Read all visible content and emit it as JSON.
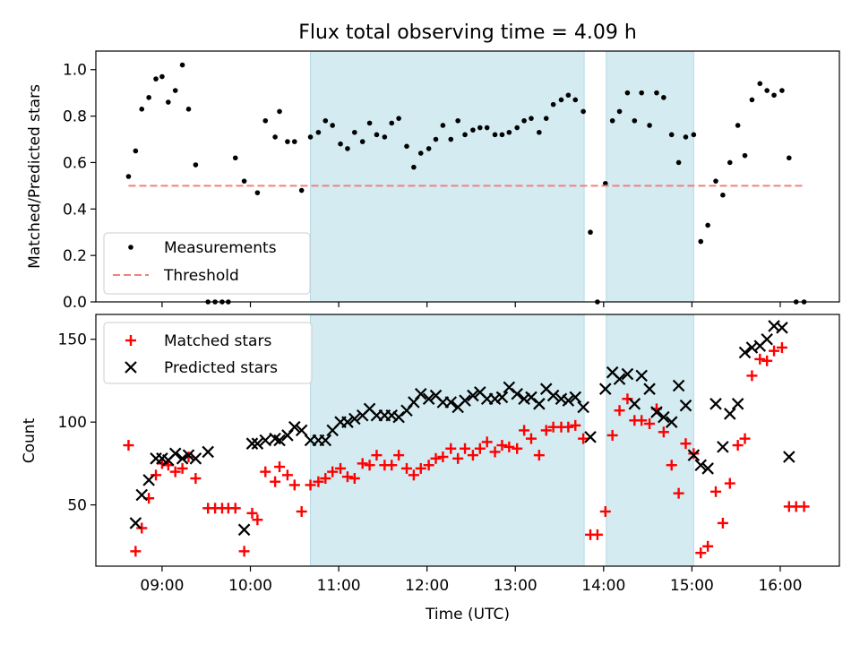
{
  "chart_data": [
    {
      "type": "scatter",
      "title": "Flux total observing time = 4.09 h",
      "ylabel": "Matched/Predicted stars",
      "xlabel": "",
      "x_unit": "hours UTC",
      "xlim": [
        8.25,
        16.67
      ],
      "ylim": [
        0,
        1.08
      ],
      "yticks": [
        0.0,
        0.2,
        0.4,
        0.6,
        0.8,
        1.0
      ],
      "ytick_labels": [
        "0.0",
        "0.2",
        "0.4",
        "0.6",
        "0.8",
        "1.0"
      ],
      "shaded_regions": [
        [
          10.68,
          13.78
        ],
        [
          14.03,
          15.02
        ]
      ],
      "shade_color": "#d3ebf1",
      "legend_position": "lower-left",
      "series": [
        {
          "name": "Measurements",
          "marker": "dot",
          "color": "#000000",
          "x": [
            8.62,
            8.7,
            8.77,
            8.85,
            8.93,
            9.0,
            9.07,
            9.15,
            9.23,
            9.3,
            9.38,
            9.52,
            9.6,
            9.68,
            9.75,
            9.83,
            9.93,
            10.08,
            10.17,
            10.28,
            10.33,
            10.42,
            10.5,
            10.58,
            10.68,
            10.77,
            10.85,
            10.93,
            11.02,
            11.1,
            11.18,
            11.27,
            11.35,
            11.43,
            11.52,
            11.6,
            11.68,
            11.77,
            11.85,
            11.93,
            12.02,
            12.1,
            12.18,
            12.27,
            12.35,
            12.43,
            12.52,
            12.6,
            12.68,
            12.77,
            12.85,
            12.93,
            13.02,
            13.1,
            13.18,
            13.27,
            13.35,
            13.43,
            13.52,
            13.6,
            13.68,
            13.77,
            13.85,
            13.93,
            14.02,
            14.1,
            14.18,
            14.27,
            14.35,
            14.43,
            14.52,
            14.6,
            14.68,
            14.77,
            14.85,
            14.93,
            15.02,
            15.1,
            15.18,
            15.27,
            15.35,
            15.43,
            15.52,
            15.6,
            15.68,
            15.77,
            15.85,
            15.93,
            16.02,
            16.1,
            16.18,
            16.27
          ],
          "y": [
            0.54,
            0.65,
            0.83,
            0.88,
            0.96,
            0.97,
            0.86,
            0.91,
            1.02,
            0.83,
            0.59,
            0.0,
            0.0,
            0.0,
            0.0,
            0.62,
            0.52,
            0.47,
            0.78,
            0.71,
            0.82,
            0.69,
            0.69,
            0.48,
            0.71,
            0.73,
            0.78,
            0.76,
            0.68,
            0.66,
            0.73,
            0.69,
            0.77,
            0.72,
            0.71,
            0.77,
            0.79,
            0.67,
            0.58,
            0.64,
            0.66,
            0.7,
            0.76,
            0.7,
            0.78,
            0.72,
            0.74,
            0.75,
            0.75,
            0.72,
            0.72,
            0.73,
            0.75,
            0.78,
            0.79,
            0.73,
            0.79,
            0.85,
            0.87,
            0.89,
            0.87,
            0.82,
            0.3,
            0.0,
            0.51,
            0.78,
            0.82,
            0.9,
            0.78,
            0.9,
            0.76,
            0.9,
            0.88,
            0.72,
            0.6,
            0.71,
            0.72,
            0.26,
            0.33,
            0.52,
            0.46,
            0.6,
            0.76,
            0.63,
            0.87,
            0.94,
            0.91,
            0.89,
            0.91,
            0.62,
            0.0,
            0.0
          ]
        },
        {
          "name": "Threshold",
          "marker": "dashed-line",
          "color": "#f08080",
          "x": [
            8.62,
            16.27
          ],
          "y": [
            0.5,
            0.5
          ]
        }
      ]
    },
    {
      "type": "scatter",
      "title": "",
      "ylabel": "Count",
      "xlabel": "Time (UTC)",
      "x_unit": "hours UTC",
      "xlim": [
        8.25,
        16.67
      ],
      "ylim": [
        13,
        165
      ],
      "yticks": [
        50,
        100,
        150
      ],
      "ytick_labels": [
        "50",
        "100",
        "150"
      ],
      "xticks": [
        9,
        10,
        11,
        12,
        13,
        14,
        15,
        16
      ],
      "xtick_labels": [
        "09:00",
        "10:00",
        "11:00",
        "12:00",
        "13:00",
        "14:00",
        "15:00",
        "16:00"
      ],
      "shaded_regions": [
        [
          10.68,
          13.78
        ],
        [
          14.03,
          15.02
        ]
      ],
      "shade_color": "#d3ebf1",
      "legend_position": "upper-left",
      "series": [
        {
          "name": "Matched stars",
          "marker": "plus",
          "color": "#ff0000",
          "x": [
            8.62,
            8.7,
            8.77,
            8.85,
            8.93,
            9.0,
            9.07,
            9.15,
            9.23,
            9.3,
            9.38,
            9.52,
            9.6,
            9.68,
            9.75,
            9.83,
            9.93,
            10.02,
            10.08,
            10.17,
            10.28,
            10.33,
            10.42,
            10.5,
            10.58,
            10.68,
            10.77,
            10.85,
            10.93,
            11.02,
            11.1,
            11.18,
            11.27,
            11.35,
            11.43,
            11.52,
            11.6,
            11.68,
            11.77,
            11.85,
            11.93,
            12.02,
            12.1,
            12.18,
            12.27,
            12.35,
            12.43,
            12.52,
            12.6,
            12.68,
            12.77,
            12.85,
            12.93,
            13.02,
            13.1,
            13.18,
            13.27,
            13.35,
            13.43,
            13.52,
            13.6,
            13.68,
            13.77,
            13.85,
            13.93,
            14.02,
            14.1,
            14.18,
            14.27,
            14.35,
            14.43,
            14.52,
            14.6,
            14.68,
            14.77,
            14.85,
            14.93,
            15.02,
            15.1,
            15.18,
            15.27,
            15.35,
            15.43,
            15.52,
            15.6,
            15.68,
            15.77,
            15.85,
            15.93,
            16.02,
            16.1,
            16.18,
            16.27
          ],
          "y": [
            86,
            22,
            36,
            54,
            68,
            75,
            74,
            70,
            72,
            79,
            66,
            48,
            48,
            48,
            48,
            48,
            22,
            45,
            41,
            70,
            64,
            73,
            68,
            62,
            46,
            62,
            64,
            66,
            70,
            72,
            67,
            66,
            75,
            74,
            80,
            74,
            74,
            80,
            72,
            68,
            72,
            74,
            78,
            79,
            84,
            78,
            84,
            80,
            84,
            88,
            82,
            86,
            85,
            84,
            95,
            90,
            80,
            95,
            97,
            97,
            97,
            98,
            90,
            32,
            32,
            46,
            92,
            107,
            114,
            101,
            101,
            99,
            108,
            94,
            74,
            57,
            87,
            81,
            21,
            25,
            58,
            39,
            63,
            86,
            90,
            128,
            138,
            137,
            143,
            145,
            49,
            49,
            49
          ]
        },
        {
          "name": "Predicted stars",
          "marker": "cross",
          "color": "#000000",
          "x": [
            8.7,
            8.77,
            8.85,
            8.93,
            9.0,
            9.07,
            9.15,
            9.23,
            9.3,
            9.38,
            9.52,
            9.93,
            10.02,
            10.08,
            10.17,
            10.28,
            10.33,
            10.42,
            10.5,
            10.58,
            10.68,
            10.77,
            10.85,
            10.93,
            11.02,
            11.1,
            11.18,
            11.27,
            11.35,
            11.43,
            11.52,
            11.6,
            11.68,
            11.77,
            11.85,
            11.93,
            12.02,
            12.1,
            12.18,
            12.27,
            12.35,
            12.43,
            12.52,
            12.6,
            12.68,
            12.77,
            12.85,
            12.93,
            13.02,
            13.1,
            13.18,
            13.27,
            13.35,
            13.43,
            13.52,
            13.6,
            13.68,
            13.77,
            13.85,
            14.02,
            14.1,
            14.18,
            14.27,
            14.35,
            14.43,
            14.52,
            14.6,
            14.68,
            14.77,
            14.85,
            14.93,
            15.02,
            15.1,
            15.18,
            15.27,
            15.35,
            15.43,
            15.52,
            15.6,
            15.68,
            15.77,
            15.85,
            15.93,
            16.02,
            16.1
          ],
          "y": [
            39,
            56,
            65,
            78,
            78,
            77,
            81,
            78,
            80,
            78,
            82,
            35,
            87,
            87,
            89,
            90,
            89,
            92,
            97,
            95,
            89,
            89,
            89,
            95,
            100,
            100,
            102,
            104,
            108,
            104,
            104,
            104,
            103,
            107,
            112,
            117,
            114,
            116,
            112,
            112,
            109,
            113,
            116,
            118,
            114,
            114,
            115,
            121,
            117,
            114,
            115,
            111,
            120,
            116,
            114,
            113,
            115,
            109,
            91,
            120,
            130,
            126,
            129,
            111,
            128,
            120,
            106,
            103,
            100,
            122,
            110,
            80,
            74,
            72,
            111,
            85,
            105,
            111,
            142,
            145,
            146,
            150,
            158,
            157,
            79
          ]
        }
      ]
    }
  ]
}
